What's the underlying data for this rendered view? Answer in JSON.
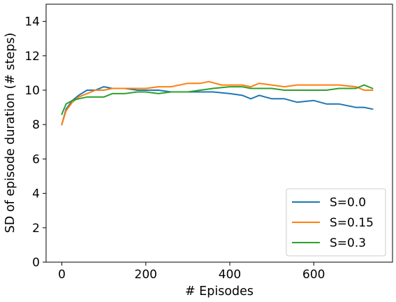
{
  "chart_data": {
    "type": "line",
    "title": "",
    "xlabel": "# Episodes",
    "ylabel": "SD of episode duration (# steps)",
    "xlim": [
      -37.5,
      787.5
    ],
    "ylim": [
      0,
      15
    ],
    "xticks": [
      0,
      200,
      400,
      600
    ],
    "yticks": [
      0,
      2,
      4,
      6,
      8,
      10,
      12,
      14
    ],
    "grid": false,
    "legend_position": "lower-right",
    "series": [
      {
        "name": "S=0.0",
        "color": "#1f77b4",
        "x": [
          0,
          10,
          25,
          40,
          60,
          80,
          100,
          120,
          150,
          180,
          200,
          230,
          260,
          300,
          330,
          360,
          400,
          430,
          450,
          470,
          500,
          530,
          560,
          600,
          630,
          660,
          700,
          720,
          740
        ],
        "y": [
          8.0,
          8.9,
          9.4,
          9.7,
          10.0,
          10.0,
          10.2,
          10.1,
          10.1,
          10.0,
          10.0,
          10.0,
          9.9,
          9.9,
          9.9,
          9.9,
          9.8,
          9.7,
          9.5,
          9.7,
          9.5,
          9.5,
          9.3,
          9.4,
          9.2,
          9.2,
          9.0,
          9.0,
          8.9
        ]
      },
      {
        "name": "S=0.15",
        "color": "#ff7f0e",
        "x": [
          0,
          10,
          25,
          40,
          60,
          80,
          100,
          120,
          150,
          180,
          200,
          230,
          260,
          300,
          330,
          350,
          380,
          400,
          430,
          450,
          470,
          500,
          530,
          560,
          600,
          630,
          660,
          700,
          720,
          740
        ],
        "y": [
          8.0,
          8.8,
          9.3,
          9.6,
          9.8,
          10.0,
          10.0,
          10.1,
          10.1,
          10.1,
          10.1,
          10.2,
          10.2,
          10.4,
          10.4,
          10.5,
          10.3,
          10.3,
          10.3,
          10.2,
          10.4,
          10.3,
          10.2,
          10.3,
          10.3,
          10.3,
          10.3,
          10.2,
          10.0,
          10.0
        ]
      },
      {
        "name": "S=0.3",
        "color": "#2ca02c",
        "x": [
          0,
          10,
          25,
          40,
          60,
          80,
          100,
          120,
          150,
          180,
          200,
          230,
          260,
          300,
          330,
          360,
          400,
          430,
          450,
          470,
          500,
          530,
          560,
          600,
          630,
          660,
          700,
          720,
          740
        ],
        "y": [
          8.6,
          9.2,
          9.4,
          9.5,
          9.6,
          9.6,
          9.6,
          9.8,
          9.8,
          9.9,
          9.9,
          9.8,
          9.9,
          9.9,
          10.0,
          10.1,
          10.2,
          10.2,
          10.1,
          10.1,
          10.1,
          10.0,
          10.0,
          10.0,
          10.0,
          10.1,
          10.1,
          10.3,
          10.1
        ]
      }
    ]
  }
}
